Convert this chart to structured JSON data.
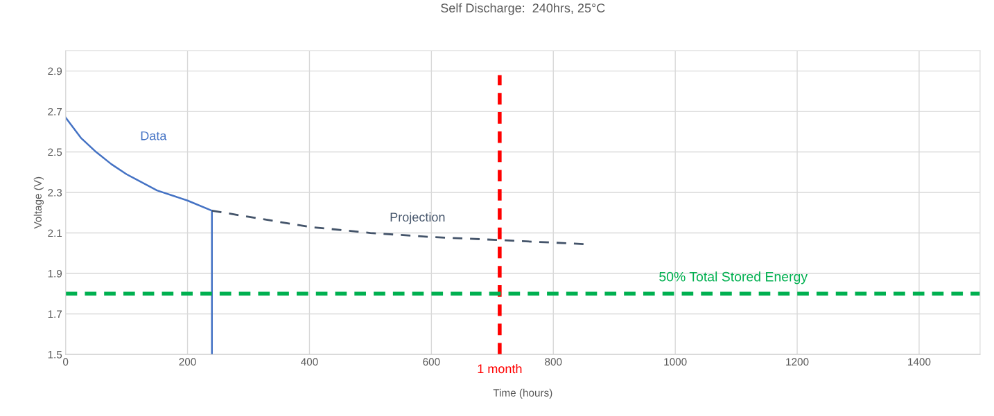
{
  "chart_data": {
    "type": "line",
    "title": "Self Discharge:  240hrs, 25°C",
    "xlabel": "Time (hours)",
    "ylabel": "Voltage (V)",
    "series": [
      {
        "name": "Data",
        "color": "#4472c4",
        "line_style": "solid",
        "x": [
          0,
          25,
          50,
          75,
          100,
          150,
          200,
          240,
          240
        ],
        "values": [
          2.67,
          2.57,
          2.5,
          2.44,
          2.39,
          2.31,
          2.26,
          2.21,
          1.5
        ]
      },
      {
        "name": "Projection",
        "color": "#44546a",
        "line_style": "dashed",
        "x": [
          240,
          300,
          400,
          500,
          600,
          712,
          850
        ],
        "values": [
          2.21,
          2.18,
          2.13,
          2.1,
          2.08,
          2.065,
          2.045
        ]
      }
    ],
    "ref_lines": [
      {
        "axis": "x",
        "value": 712,
        "label": "1 month",
        "color": "#ff0000",
        "line_style": "dashed"
      },
      {
        "axis": "y",
        "value": 1.8,
        "label": "50% Total Stored Energy",
        "color": "#00b050",
        "line_style": "dashed"
      }
    ],
    "xlim": [
      0,
      1500
    ],
    "xticks": [
      0,
      200,
      400,
      600,
      800,
      1000,
      1200,
      1400
    ],
    "ylim": [
      1.5,
      3.0
    ],
    "yticks": [
      1.5,
      1.7,
      1.9,
      2.1,
      2.3,
      2.5,
      2.7,
      2.9
    ],
    "grid": true,
    "marker": "none"
  }
}
